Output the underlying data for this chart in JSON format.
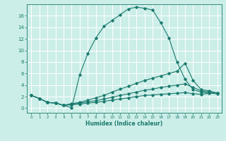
{
  "xlabel": "Humidex (Indice chaleur)",
  "bg_color": "#cceee8",
  "line_color": "#1a7a6e",
  "grid_color": "#b0d8d0",
  "xlim": [
    -0.5,
    23.5
  ],
  "ylim": [
    -0.8,
    18.0
  ],
  "yticks": [
    0,
    2,
    4,
    6,
    8,
    10,
    12,
    14,
    16
  ],
  "xticks": [
    0,
    1,
    2,
    3,
    4,
    5,
    6,
    7,
    8,
    9,
    10,
    11,
    12,
    13,
    14,
    15,
    16,
    17,
    18,
    19,
    20,
    21,
    22,
    23
  ],
  "curve1_x": [
    0,
    1,
    2,
    3,
    4,
    5,
    6,
    7,
    8,
    9,
    10,
    11,
    12,
    13,
    14,
    15,
    16,
    17,
    18,
    19,
    20,
    21,
    22,
    23
  ],
  "curve1_y": [
    2.2,
    1.7,
    1.0,
    0.9,
    0.5,
    0.1,
    5.8,
    9.5,
    12.2,
    14.2,
    15.2,
    16.2,
    17.2,
    17.5,
    17.3,
    17.0,
    14.8,
    12.2,
    8.0,
    5.0,
    3.2,
    2.8,
    2.6,
    2.5
  ],
  "curve2_x": [
    0,
    1,
    2,
    3,
    4,
    5,
    6,
    7,
    8,
    9,
    10,
    11,
    12,
    13,
    14,
    15,
    16,
    17,
    18,
    19,
    20,
    21,
    22,
    23
  ],
  "curve2_y": [
    2.2,
    1.7,
    1.0,
    0.9,
    0.5,
    0.8,
    1.0,
    1.4,
    1.8,
    2.2,
    2.8,
    3.3,
    3.8,
    4.3,
    4.8,
    5.2,
    5.6,
    6.0,
    6.4,
    7.8,
    4.8,
    3.2,
    3.0,
    2.6
  ],
  "curve3_x": [
    0,
    1,
    2,
    3,
    4,
    5,
    6,
    7,
    8,
    9,
    10,
    11,
    12,
    13,
    14,
    15,
    16,
    17,
    18,
    19,
    20,
    21,
    22,
    23
  ],
  "curve3_y": [
    2.2,
    1.7,
    1.0,
    0.9,
    0.5,
    0.7,
    0.9,
    1.1,
    1.3,
    1.6,
    1.9,
    2.2,
    2.5,
    2.8,
    3.1,
    3.3,
    3.6,
    3.8,
    4.0,
    4.2,
    3.6,
    3.0,
    2.8,
    2.6
  ],
  "curve4_x": [
    0,
    1,
    2,
    3,
    4,
    5,
    6,
    7,
    8,
    9,
    10,
    11,
    12,
    13,
    14,
    15,
    16,
    17,
    18,
    19,
    20,
    21,
    22,
    23
  ],
  "curve4_y": [
    2.2,
    1.7,
    1.0,
    0.9,
    0.5,
    0.6,
    0.7,
    0.9,
    1.0,
    1.2,
    1.4,
    1.6,
    1.8,
    2.0,
    2.2,
    2.3,
    2.4,
    2.5,
    2.6,
    2.7,
    2.5,
    2.4,
    2.6,
    2.6
  ]
}
